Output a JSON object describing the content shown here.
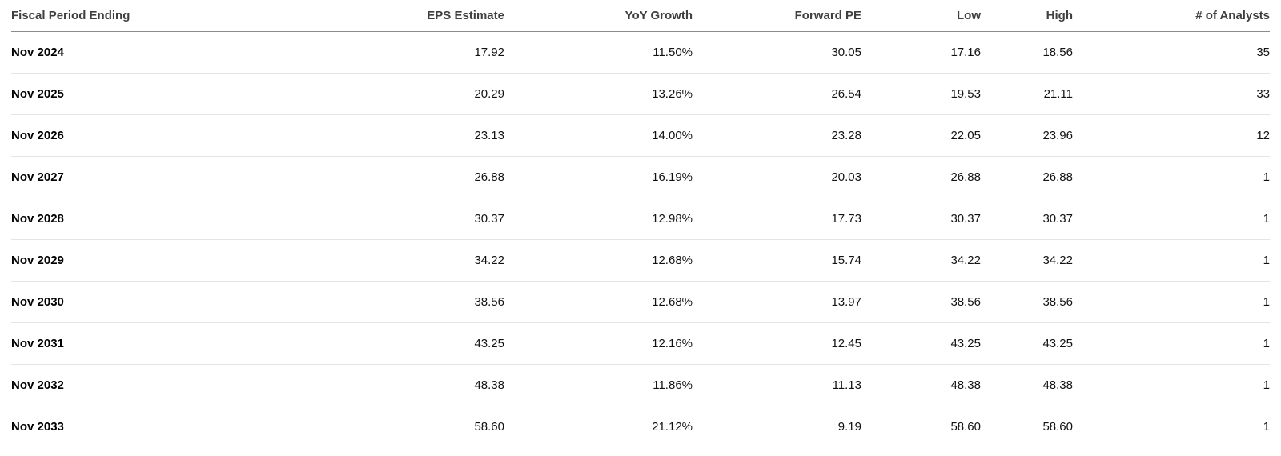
{
  "colors": {
    "header_text": "#3f3f3f",
    "body_text": "#121212",
    "label_text": "#000000",
    "header_border": "#8c8c8c",
    "row_border": "#e4e4e4",
    "background": "#ffffff"
  },
  "table": {
    "columns": [
      {
        "key": "period",
        "label": "Fiscal Period Ending",
        "align": "left"
      },
      {
        "key": "eps",
        "label": "EPS Estimate",
        "align": "right"
      },
      {
        "key": "yoy",
        "label": "YoY Growth",
        "align": "right"
      },
      {
        "key": "fpe",
        "label": "Forward PE",
        "align": "right"
      },
      {
        "key": "low",
        "label": "Low",
        "align": "right"
      },
      {
        "key": "high",
        "label": "High",
        "align": "right"
      },
      {
        "key": "analysts",
        "label": "# of Analysts",
        "align": "right"
      }
    ],
    "rows": [
      {
        "period": "Nov 2024",
        "eps": "17.92",
        "yoy": "11.50%",
        "fpe": "30.05",
        "low": "17.16",
        "high": "18.56",
        "analysts": "35"
      },
      {
        "period": "Nov 2025",
        "eps": "20.29",
        "yoy": "13.26%",
        "fpe": "26.54",
        "low": "19.53",
        "high": "21.11",
        "analysts": "33"
      },
      {
        "period": "Nov 2026",
        "eps": "23.13",
        "yoy": "14.00%",
        "fpe": "23.28",
        "low": "22.05",
        "high": "23.96",
        "analysts": "12"
      },
      {
        "period": "Nov 2027",
        "eps": "26.88",
        "yoy": "16.19%",
        "fpe": "20.03",
        "low": "26.88",
        "high": "26.88",
        "analysts": "1"
      },
      {
        "period": "Nov 2028",
        "eps": "30.37",
        "yoy": "12.98%",
        "fpe": "17.73",
        "low": "30.37",
        "high": "30.37",
        "analysts": "1"
      },
      {
        "period": "Nov 2029",
        "eps": "34.22",
        "yoy": "12.68%",
        "fpe": "15.74",
        "low": "34.22",
        "high": "34.22",
        "analysts": "1"
      },
      {
        "period": "Nov 2030",
        "eps": "38.56",
        "yoy": "12.68%",
        "fpe": "13.97",
        "low": "38.56",
        "high": "38.56",
        "analysts": "1"
      },
      {
        "period": "Nov 2031",
        "eps": "43.25",
        "yoy": "12.16%",
        "fpe": "12.45",
        "low": "43.25",
        "high": "43.25",
        "analysts": "1"
      },
      {
        "period": "Nov 2032",
        "eps": "48.38",
        "yoy": "11.86%",
        "fpe": "11.13",
        "low": "48.38",
        "high": "48.38",
        "analysts": "1"
      },
      {
        "period": "Nov 2033",
        "eps": "58.60",
        "yoy": "21.12%",
        "fpe": "9.19",
        "low": "58.60",
        "high": "58.60",
        "analysts": "1"
      }
    ]
  }
}
